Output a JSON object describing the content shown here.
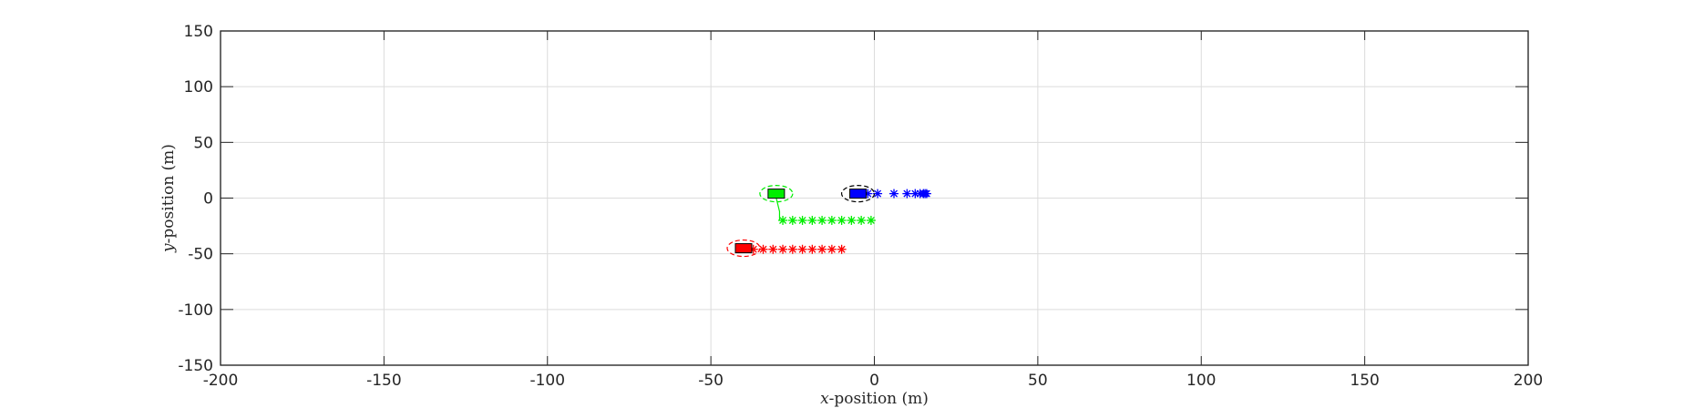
{
  "chart_data": {
    "type": "scatter",
    "title": "",
    "xlabel_var": "x",
    "xlabel_rest": "-position (m)",
    "ylabel_var": "y",
    "ylabel_rest": "-position (m)",
    "xlim": [
      -200,
      200
    ],
    "ylim": [
      -150,
      150
    ],
    "xticks": [
      -200,
      -150,
      -100,
      -50,
      0,
      50,
      100,
      150,
      200
    ],
    "yticks": [
      -150,
      -100,
      -50,
      0,
      50,
      100,
      150
    ],
    "xtick_labels": [
      "-200",
      "-150",
      "-100",
      "-50",
      "0",
      "50",
      "100",
      "150",
      "200"
    ],
    "ytick_labels": [
      "-150",
      "-100",
      "-50",
      "0",
      "50",
      "100",
      "150"
    ],
    "grid": true,
    "legend": "none",
    "vehicles": [
      {
        "color": "#ff0000",
        "position": [
          -40,
          -45
        ],
        "trajectory_marker": "asterisk",
        "trajectory": {
          "x": [
            -37,
            -34,
            -31,
            -28,
            -25,
            -22,
            -19,
            -16,
            -13,
            -10
          ],
          "y": [
            -46,
            -46,
            -46,
            -46,
            -46,
            -46,
            -46,
            -46,
            -46,
            -46
          ]
        }
      },
      {
        "color": "#00ee00",
        "position": [
          -30,
          4
        ],
        "trajectory_marker": "asterisk",
        "connector": {
          "x": [
            -30,
            -29,
            -29
          ],
          "y": [
            0,
            -12,
            -20
          ]
        },
        "trajectory": {
          "x": [
            -28,
            -25,
            -22,
            -19,
            -16,
            -13,
            -10,
            -7,
            -4,
            -1
          ],
          "y": [
            -20,
            -20,
            -20,
            -20,
            -20,
            -20,
            -20,
            -20,
            -20,
            -20
          ]
        }
      },
      {
        "color": "#0000ff",
        "position": [
          -5,
          4
        ],
        "trajectory_marker": "asterisk",
        "trajectory": {
          "x": [
            -2,
            1,
            6,
            10,
            12.5,
            14,
            15,
            15.5,
            16
          ],
          "y": [
            4,
            4,
            4,
            4,
            4,
            4,
            4,
            4,
            4
          ]
        }
      }
    ]
  }
}
